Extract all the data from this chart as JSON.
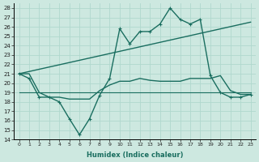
{
  "xlabel": "Humidex (Indice chaleur)",
  "ylabel": "",
  "xlim": [
    -0.5,
    23.5
  ],
  "ylim": [
    14,
    28.5
  ],
  "yticks": [
    14,
    15,
    16,
    17,
    18,
    19,
    20,
    21,
    22,
    23,
    24,
    25,
    26,
    27,
    28
  ],
  "xticks": [
    0,
    1,
    2,
    3,
    4,
    5,
    6,
    7,
    8,
    9,
    10,
    11,
    12,
    13,
    14,
    15,
    16,
    17,
    18,
    19,
    20,
    21,
    22,
    23
  ],
  "bg_color": "#cde8e0",
  "grid_color": "#b0d8ce",
  "line_color": "#1a6e60",
  "lines": [
    {
      "x": [
        0,
        1,
        2,
        3,
        4,
        5,
        6,
        7,
        8,
        9,
        10,
        11,
        12,
        13,
        14,
        15,
        16,
        17,
        18,
        19,
        20,
        21,
        22,
        23
      ],
      "y": [
        21,
        20.5,
        18.5,
        18.5,
        18.0,
        16.2,
        14.5,
        16.2,
        18.7,
        20.5,
        25.8,
        24.2,
        25.5,
        25.5,
        26.3,
        28.0,
        26.8,
        26.3,
        26.8,
        20.8,
        19.0,
        18.5,
        18.5,
        18.8
      ],
      "marker": "+",
      "linewidth": 1.0,
      "markersize": 3.5
    },
    {
      "x": [
        0,
        1,
        2,
        3,
        4,
        5,
        6,
        7,
        8,
        9,
        10,
        11,
        12,
        13,
        14,
        15,
        16,
        17,
        18,
        19,
        20,
        21,
        22,
        23
      ],
      "y": [
        21,
        21,
        19.0,
        18.5,
        18.5,
        18.3,
        18.3,
        18.3,
        19.2,
        19.8,
        20.2,
        20.2,
        20.5,
        20.3,
        20.2,
        20.2,
        20.2,
        20.5,
        20.5,
        20.5,
        20.8,
        19.2,
        18.8,
        18.8
      ],
      "marker": null,
      "linewidth": 1.0,
      "markersize": 0
    },
    {
      "x": [
        0,
        1,
        2,
        3,
        4,
        5,
        6,
        7,
        8,
        9,
        10,
        11,
        12,
        13,
        14,
        15,
        16,
        17,
        18,
        19,
        20,
        21,
        22,
        23
      ],
      "y": [
        19.0,
        19.0,
        19.0,
        19.0,
        19.0,
        19.0,
        19.0,
        19.0,
        19.0,
        19.0,
        19.0,
        19.0,
        19.0,
        19.0,
        19.0,
        19.0,
        19.0,
        19.0,
        19.0,
        19.0,
        19.0,
        19.0,
        19.0,
        19.0
      ],
      "marker": null,
      "linewidth": 0.8,
      "markersize": 0
    },
    {
      "x": [
        0,
        23
      ],
      "y": [
        21.0,
        26.5
      ],
      "marker": null,
      "linewidth": 1.0,
      "markersize": 0
    }
  ]
}
